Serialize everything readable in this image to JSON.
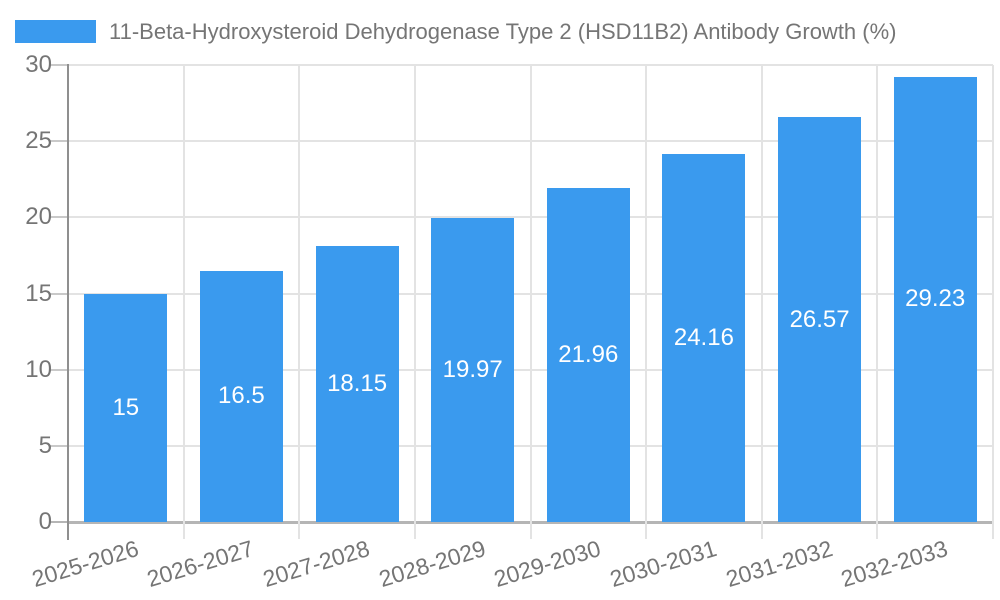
{
  "legend": {
    "label": "11-Beta-Hydroxysteroid Dehydrogenase Type 2 (HSD11B2) Antibody Growth (%)"
  },
  "chart_data": {
    "type": "bar",
    "title": "11-Beta-Hydroxysteroid Dehydrogenase Type 2 (HSD11B2) Antibody Growth (%)",
    "categories": [
      "2025-2026",
      "2026-2027",
      "2027-2028",
      "2028-2029",
      "2029-2030",
      "2030-2031",
      "2031-2032",
      "2032-2033"
    ],
    "values": [
      15,
      16.5,
      18.15,
      19.97,
      21.96,
      24.16,
      26.57,
      29.23
    ],
    "value_labels": [
      "15",
      "16.5",
      "18.15",
      "19.97",
      "21.96",
      "24.16",
      "26.57",
      "29.23"
    ],
    "xlabel": "",
    "ylabel": "",
    "ylim": [
      0,
      30
    ],
    "yticks": [
      0,
      5,
      10,
      15,
      20,
      25,
      30
    ],
    "grid": true,
    "legend_position": "top-left",
    "colors": {
      "bar": "#3A9AEE",
      "grid": "#E3E3E3",
      "axis_line": "#8F8F8F",
      "baseline": "#B5B5B5",
      "tick": "#C9C9C9",
      "text": "#757575",
      "value_text": "#FFFFFF",
      "background": "#FFFFFF"
    }
  }
}
